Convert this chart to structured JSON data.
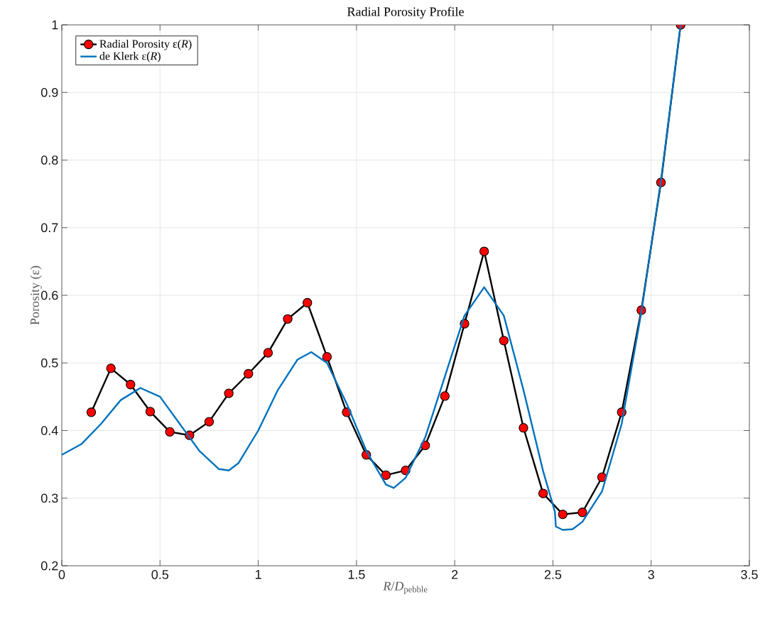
{
  "chart_data": {
    "type": "line",
    "title": "Radial Porosity Profile",
    "xlabel": "*R*/*D*$_{pebble}$",
    "ylabel": "Porosity (ε)",
    "xlim": [
      0,
      3.5
    ],
    "ylim": [
      0.2,
      1
    ],
    "xticks": [
      0,
      0.5,
      1,
      1.5,
      2,
      2.5,
      3,
      3.5
    ],
    "yticks": [
      0.2,
      0.3,
      0.4,
      0.5,
      0.6,
      0.7,
      0.8,
      0.9,
      1
    ],
    "grid": true,
    "legend": "top left",
    "series": [
      {
        "name": "Radial Porosity ε(*R*)",
        "color": "#000000",
        "marker": "circle",
        "x": [
          0.15,
          0.25,
          0.35,
          0.45,
          0.55,
          0.65,
          0.75,
          0.85,
          0.95,
          1.05,
          1.15,
          1.25,
          1.35,
          1.45,
          1.55,
          1.65,
          1.75,
          1.85,
          1.95,
          2.05,
          2.15,
          2.25,
          2.35,
          2.45,
          2.55,
          2.65,
          2.75,
          2.85,
          2.95,
          3.05,
          3.15
        ],
        "values": [
          0.427,
          0.492,
          0.468,
          0.428,
          0.398,
          0.393,
          0.413,
          0.455,
          0.484,
          0.515,
          0.565,
          0.589,
          0.509,
          0.427,
          0.364,
          0.334,
          0.341,
          0.378,
          0.451,
          0.558,
          0.665,
          0.533,
          0.404,
          0.307,
          0.276,
          0.279,
          0.331,
          0.427,
          0.578,
          0.767,
          1.0
        ]
      },
      {
        "name": "de Klerk ε(*R*)",
        "color": "#0072bd",
        "marker": "none",
        "x": [
          0,
          0.1,
          0.2,
          0.3,
          0.4,
          0.5,
          0.6,
          0.7,
          0.8,
          0.85,
          0.9,
          1.0,
          1.1,
          1.2,
          1.27,
          1.35,
          1.45,
          1.55,
          1.65,
          1.69,
          1.75,
          1.85,
          1.95,
          2.05,
          2.15,
          2.25,
          2.35,
          2.45,
          2.51,
          2.515,
          2.55,
          2.6,
          2.65,
          2.75,
          2.85,
          2.95,
          3.05,
          3.15
        ],
        "values": [
          0.364,
          0.38,
          0.41,
          0.445,
          0.463,
          0.45,
          0.41,
          0.37,
          0.343,
          0.341,
          0.352,
          0.4,
          0.46,
          0.505,
          0.516,
          0.5,
          0.44,
          0.37,
          0.32,
          0.315,
          0.33,
          0.39,
          0.48,
          0.57,
          0.612,
          0.57,
          0.46,
          0.34,
          0.28,
          0.258,
          0.253,
          0.254,
          0.265,
          0.31,
          0.41,
          0.575,
          0.77,
          1.0
        ]
      }
    ]
  }
}
